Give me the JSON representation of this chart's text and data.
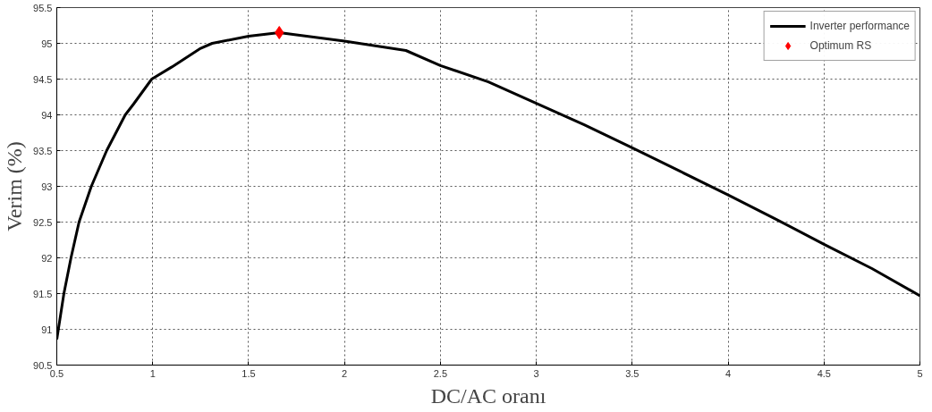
{
  "chart_data": {
    "type": "line",
    "xlabel": "DC/AC oranı",
    "ylabel": "Verim (%)",
    "series": [
      {
        "name": "Inverter performance",
        "color": "#000000",
        "x": [
          0.5,
          0.537,
          0.574,
          0.616,
          0.68,
          0.76,
          0.857,
          0.9,
          0.995,
          1.1,
          1.25,
          1.31,
          1.5,
          1.66,
          2.0,
          2.32,
          2.5,
          2.75,
          3.0,
          3.25,
          3.5,
          3.75,
          4.0,
          4.25,
          4.5,
          4.75,
          5.0
        ],
        "values": [
          90.86,
          91.5,
          92.0,
          92.5,
          93.0,
          93.5,
          94.0,
          94.15,
          94.5,
          94.67,
          94.93,
          95.0,
          95.1,
          95.15,
          95.03,
          94.9,
          94.69,
          94.46,
          94.16,
          93.86,
          93.54,
          93.21,
          92.88,
          92.54,
          92.19,
          91.85,
          91.47
        ]
      },
      {
        "name": "Optimum RS",
        "type": "scatter",
        "color": "#ff0000",
        "marker": "diamond",
        "x": [
          1.66
        ],
        "values": [
          95.15
        ]
      }
    ],
    "xlim": [
      0.5,
      5
    ],
    "xticks": [
      0.5,
      1,
      1.5,
      2,
      2.5,
      3,
      3.5,
      4,
      4.5,
      5
    ],
    "ylim": [
      90.5,
      95.5
    ],
    "yticks": [
      90.5,
      91,
      91.5,
      92,
      92.5,
      93,
      93.5,
      94,
      94.5,
      95,
      95.5
    ],
    "grid": true,
    "legend": "top right",
    "line_style": "solid"
  }
}
